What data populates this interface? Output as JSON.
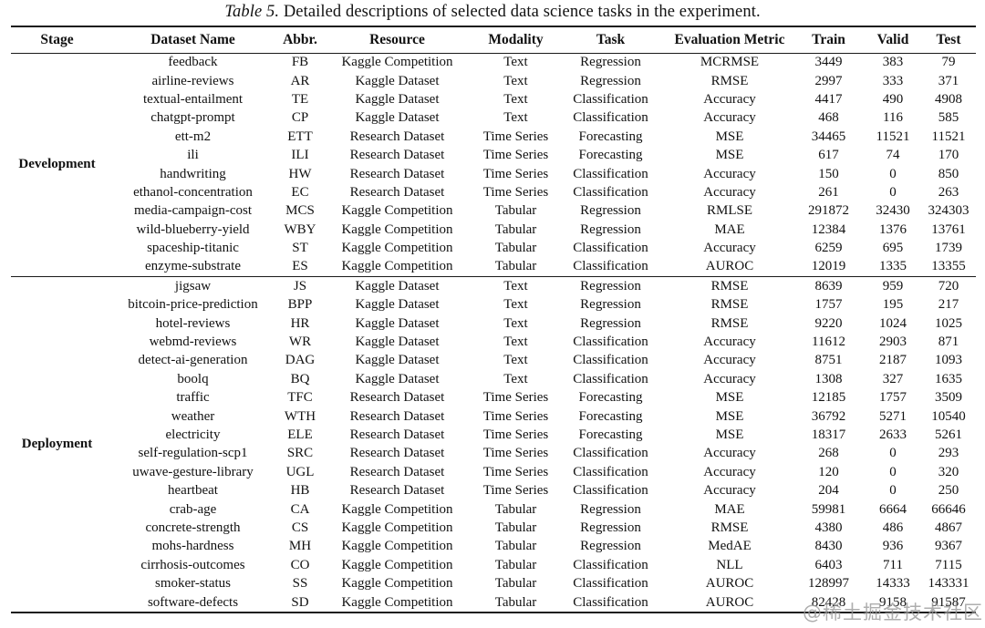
{
  "title": {
    "label": "Table 5.",
    "text": "Detailed descriptions of selected data science tasks in the experiment."
  },
  "watermark": "@稀土掘金技术社区",
  "table": {
    "columns": [
      "Stage",
      "Dataset Name",
      "Abbr.",
      "Resource",
      "Modality",
      "Task",
      "Evaluation Metric",
      "Train",
      "Valid",
      "Test"
    ],
    "sections": [
      {
        "stage": "Development",
        "rows": [
          [
            "feedback",
            "FB",
            "Kaggle Competition",
            "Text",
            "Regression",
            "MCRMSE",
            "3449",
            "383",
            "79"
          ],
          [
            "airline-reviews",
            "AR",
            "Kaggle Dataset",
            "Text",
            "Regression",
            "RMSE",
            "2997",
            "333",
            "371"
          ],
          [
            "textual-entailment",
            "TE",
            "Kaggle Dataset",
            "Text",
            "Classification",
            "Accuracy",
            "4417",
            "490",
            "4908"
          ],
          [
            "chatgpt-prompt",
            "CP",
            "Kaggle Dataset",
            "Text",
            "Classification",
            "Accuracy",
            "468",
            "116",
            "585"
          ],
          [
            "ett-m2",
            "ETT",
            "Research Dataset",
            "Time Series",
            "Forecasting",
            "MSE",
            "34465",
            "11521",
            "11521"
          ],
          [
            "ili",
            "ILI",
            "Research Dataset",
            "Time Series",
            "Forecasting",
            "MSE",
            "617",
            "74",
            "170"
          ],
          [
            "handwriting",
            "HW",
            "Research Dataset",
            "Time Series",
            "Classification",
            "Accuracy",
            "150",
            "0",
            "850"
          ],
          [
            "ethanol-concentration",
            "EC",
            "Research Dataset",
            "Time Series",
            "Classification",
            "Accuracy",
            "261",
            "0",
            "263"
          ],
          [
            "media-campaign-cost",
            "MCS",
            "Kaggle Competition",
            "Tabular",
            "Regression",
            "RMLSE",
            "291872",
            "32430",
            "324303"
          ],
          [
            "wild-blueberry-yield",
            "WBY",
            "Kaggle Competition",
            "Tabular",
            "Regression",
            "MAE",
            "12384",
            "1376",
            "13761"
          ],
          [
            "spaceship-titanic",
            "ST",
            "Kaggle Competition",
            "Tabular",
            "Classification",
            "Accuracy",
            "6259",
            "695",
            "1739"
          ],
          [
            "enzyme-substrate",
            "ES",
            "Kaggle Competition",
            "Tabular",
            "Classification",
            "AUROC",
            "12019",
            "1335",
            "13355"
          ]
        ]
      },
      {
        "stage": "Deployment",
        "rows": [
          [
            "jigsaw",
            "JS",
            "Kaggle Dataset",
            "Text",
            "Regression",
            "RMSE",
            "8639",
            "959",
            "720"
          ],
          [
            "bitcoin-price-prediction",
            "BPP",
            "Kaggle Dataset",
            "Text",
            "Regression",
            "RMSE",
            "1757",
            "195",
            "217"
          ],
          [
            "hotel-reviews",
            "HR",
            "Kaggle Dataset",
            "Text",
            "Regression",
            "RMSE",
            "9220",
            "1024",
            "1025"
          ],
          [
            "webmd-reviews",
            "WR",
            "Kaggle Dataset",
            "Text",
            "Classification",
            "Accuracy",
            "11612",
            "2903",
            "871"
          ],
          [
            "detect-ai-generation",
            "DAG",
            "Kaggle Dataset",
            "Text",
            "Classification",
            "Accuracy",
            "8751",
            "2187",
            "1093"
          ],
          [
            "boolq",
            "BQ",
            "Kaggle Dataset",
            "Text",
            "Classification",
            "Accuracy",
            "1308",
            "327",
            "1635"
          ],
          [
            "traffic",
            "TFC",
            "Research Dataset",
            "Time Series",
            "Forecasting",
            "MSE",
            "12185",
            "1757",
            "3509"
          ],
          [
            "weather",
            "WTH",
            "Research Dataset",
            "Time Series",
            "Forecasting",
            "MSE",
            "36792",
            "5271",
            "10540"
          ],
          [
            "electricity",
            "ELE",
            "Research Dataset",
            "Time Series",
            "Forecasting",
            "MSE",
            "18317",
            "2633",
            "5261"
          ],
          [
            "self-regulation-scp1",
            "SRC",
            "Research Dataset",
            "Time Series",
            "Classification",
            "Accuracy",
            "268",
            "0",
            "293"
          ],
          [
            "uwave-gesture-library",
            "UGL",
            "Research Dataset",
            "Time Series",
            "Classification",
            "Accuracy",
            "120",
            "0",
            "320"
          ],
          [
            "heartbeat",
            "HB",
            "Research Dataset",
            "Time Series",
            "Classification",
            "Accuracy",
            "204",
            "0",
            "250"
          ],
          [
            "crab-age",
            "CA",
            "Kaggle Competition",
            "Tabular",
            "Regression",
            "MAE",
            "59981",
            "6664",
            "66646"
          ],
          [
            "concrete-strength",
            "CS",
            "Kaggle Competition",
            "Tabular",
            "Regression",
            "RMSE",
            "4380",
            "486",
            "4867"
          ],
          [
            "mohs-hardness",
            "MH",
            "Kaggle Competition",
            "Tabular",
            "Regression",
            "MedAE",
            "8430",
            "936",
            "9367"
          ],
          [
            "cirrhosis-outcomes",
            "CO",
            "Kaggle Competition",
            "Tabular",
            "Classification",
            "NLL",
            "6403",
            "711",
            "7115"
          ],
          [
            "smoker-status",
            "SS",
            "Kaggle Competition",
            "Tabular",
            "Classification",
            "AUROC",
            "128997",
            "14333",
            "143331"
          ],
          [
            "software-defects",
            "SD",
            "Kaggle Competition",
            "Tabular",
            "Classification",
            "AUROC",
            "82428",
            "9158",
            "91587"
          ]
        ]
      }
    ]
  }
}
